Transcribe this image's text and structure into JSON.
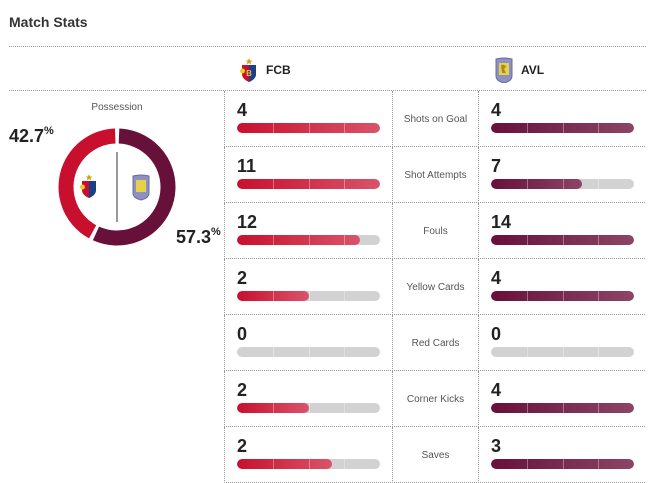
{
  "title": "Match Stats",
  "teams": {
    "home": {
      "abbr": "FCB",
      "color": "#c8102e",
      "crest": "fcb-crest-icon"
    },
    "away": {
      "abbr": "AVL",
      "color": "#67103a",
      "crest": "avl-crest-icon"
    }
  },
  "possession": {
    "label": "Possession",
    "home": "42.7",
    "away": "57.3",
    "unit": "%"
  },
  "stats": [
    {
      "label": "Shots on Goal",
      "home": 4,
      "away": 4
    },
    {
      "label": "Shot Attempts",
      "home": 11,
      "away": 7
    },
    {
      "label": "Fouls",
      "home": 12,
      "away": 14
    },
    {
      "label": "Yellow Cards",
      "home": 2,
      "away": 4
    },
    {
      "label": "Red Cards",
      "home": 0,
      "away": 0
    },
    {
      "label": "Corner Kicks",
      "home": 2,
      "away": 4
    },
    {
      "label": "Saves",
      "home": 2,
      "away": 3
    }
  ]
}
